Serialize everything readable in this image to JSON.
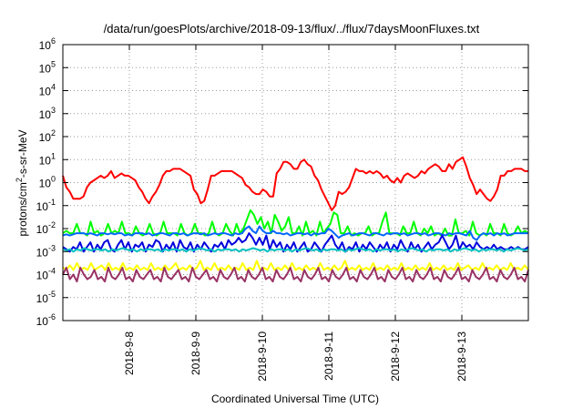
{
  "chart_data": {
    "type": "line",
    "title": "/data/run/goesPlots/archive/2018-09-13/flux/../flux/7daysMoonFluxes.txt",
    "xlabel": "Coordinated Universal Time (UTC)",
    "ylabel_base": "protons/cm",
    "ylabel_sup": "2",
    "ylabel_rest": "-s-sr-MeV",
    "yscale": "log",
    "ylim_exp": [
      -6,
      6
    ],
    "ytick_exps": [
      -6,
      -5,
      -4,
      -3,
      -2,
      -1,
      0,
      1,
      2,
      3,
      4,
      5,
      6
    ],
    "ytick_base": "10",
    "ytick_exp_labels": [
      "-6",
      "-5",
      "-4",
      "-3",
      "-2",
      "-1",
      "0",
      "1",
      "2",
      "3",
      "4",
      "5",
      "6"
    ],
    "xlim_days": [
      0,
      7
    ],
    "xticks": [
      {
        "label": "2018-9-8",
        "day": 1
      },
      {
        "label": "2018-9-9",
        "day": 2
      },
      {
        "label": "2018-9-10",
        "day": 3
      },
      {
        "label": "2018-9-11",
        "day": 4
      },
      {
        "label": "2018-9-12",
        "day": 5
      },
      {
        "label": "2018-9-13",
        "day": 6
      }
    ],
    "grid": "dotted",
    "series": [
      {
        "color": "#ff0000",
        "log10_values": [
          0.3,
          -0.2,
          -0.4,
          -0.7,
          -0.7,
          -0.7,
          -0.6,
          -0.2,
          0.0,
          0.1,
          0.2,
          0.3,
          0.2,
          0.3,
          0.5,
          0.2,
          0.3,
          0.4,
          0.3,
          0.3,
          0.2,
          0.1,
          -0.2,
          -0.4,
          -0.7,
          -0.9,
          -0.6,
          -0.4,
          -0.1,
          0.3,
          0.5,
          0.5,
          0.6,
          0.6,
          0.6,
          0.5,
          0.4,
          0.3,
          -0.3,
          -0.5,
          -0.9,
          -0.8,
          -0.3,
          0.3,
          0.3,
          0.4,
          0.5,
          0.5,
          0.5,
          0.5,
          0.4,
          0.3,
          0.2,
          -0.1,
          -0.2,
          -0.4,
          -0.5,
          -0.5,
          -0.3,
          -0.4,
          -0.6,
          -0.6,
          0.4,
          0.6,
          0.9,
          0.9,
          0.8,
          0.6,
          0.6,
          0.9,
          1.0,
          0.8,
          0.7,
          0.3,
          0.1,
          -0.3,
          -0.6,
          -0.9,
          -1.2,
          -1.0,
          -0.4,
          -0.5,
          -0.4,
          -0.2,
          0.2,
          0.6,
          0.5,
          0.5,
          0.4,
          0.5,
          0.4,
          0.5,
          0.4,
          0.2,
          0.3,
          0.1,
          0.0,
          0.2,
          0.0,
          0.3,
          0.4,
          0.3,
          0.2,
          0.3,
          0.5,
          0.4,
          0.6,
          0.7,
          0.8,
          0.7,
          0.5,
          0.5,
          0.8,
          0.6,
          0.9,
          1.0,
          1.1,
          0.7,
          0.2,
          -0.1,
          -0.5,
          -0.3,
          -0.5,
          -0.7,
          -0.8,
          -0.6,
          -0.3,
          0.3,
          0.3,
          0.5,
          0.5,
          0.6,
          0.6,
          0.6,
          0.5,
          0.5
        ]
      },
      {
        "color": "#00ff00",
        "log10_values": [
          -2.2,
          -2.1,
          -2.2,
          -2.2,
          -1.8,
          -2.2,
          -2.2,
          -2.3,
          -1.7,
          -2.2,
          -2.1,
          -2.3,
          -2.2,
          -1.8,
          -2.2,
          -2.1,
          -2.2,
          -1.7,
          -2.2,
          -2.2,
          -2.3,
          -1.9,
          -2.2,
          -2.3,
          -2.2,
          -1.8,
          -2.2,
          -2.3,
          -2.2,
          -1.7,
          -2.2,
          -2.2,
          -2.2,
          -2.3,
          -1.8,
          -2.2,
          -2.3,
          -2.2,
          -1.8,
          -2.2,
          -2.2,
          -2.3,
          -2.2,
          -1.7,
          -2.2,
          -2.3,
          -2.2,
          -1.8,
          -2.1,
          -2.3,
          -1.8,
          -2.2,
          -2.0,
          -1.6,
          -1.2,
          -1.4,
          -1.8,
          -1.5,
          -2.0,
          -1.7,
          -2.2,
          -1.4,
          -1.7,
          -2.1,
          -1.9,
          -1.5,
          -2.2,
          -2.2,
          -1.9,
          -2.3,
          -1.7,
          -2.2,
          -2.1,
          -2.3,
          -1.7,
          -2.2,
          -2.0,
          -1.8,
          -1.3,
          -1.4,
          -2.2,
          -2.2,
          -1.9,
          -2.3,
          -2.2,
          -2.3,
          -2.2,
          -2.2,
          -1.9,
          -2.3,
          -2.2,
          -2.2,
          -1.7,
          -1.3,
          -2.2,
          -2.2,
          -2.2,
          -2.3,
          -1.9,
          -2.2,
          -2.2,
          -1.7,
          -2.2,
          -2.3,
          -2.0,
          -2.2,
          -1.9,
          -2.3,
          -2.2,
          -2.3,
          -2.0,
          -2.3,
          -2.3,
          -1.6,
          -2.2,
          -2.2,
          -2.1,
          -2.3,
          -1.7,
          -2.2,
          -2.3,
          -2.2,
          -2.3,
          -1.8,
          -2.2,
          -2.2,
          -2.3,
          -1.8,
          -2.2,
          -2.3,
          -2.2,
          -1.9,
          -2.2,
          -2.1,
          -2.2
        ]
      },
      {
        "color": "#0066ff",
        "log10_values": [
          -2.3,
          -2.25,
          -2.3,
          -2.25,
          -2.2,
          -2.2,
          -2.2,
          -2.25,
          -2.2,
          -2.25,
          -2.3,
          -2.2,
          -2.2,
          -2.25,
          -2.2,
          -2.25,
          -2.2,
          -2.2,
          -2.3,
          -2.25,
          -2.3,
          -2.2,
          -2.2,
          -2.2,
          -2.25,
          -2.2,
          -2.3,
          -2.25,
          -2.2,
          -2.2,
          -2.25,
          -2.3,
          -2.2,
          -2.2,
          -2.25,
          -2.2,
          -2.3,
          -2.25,
          -2.2,
          -2.2,
          -2.25,
          -2.2,
          -2.3,
          -2.25,
          -2.2,
          -2.25,
          -2.2,
          -2.2,
          -2.25,
          -2.3,
          -2.2,
          -2.25,
          -2.2,
          -2.0,
          -1.9,
          -2.1,
          -2.2,
          -1.9,
          -2.1,
          -2.2,
          -2.2,
          -2.1,
          -2.2,
          -2.2,
          -2.25,
          -2.2,
          -2.3,
          -2.25,
          -2.2,
          -2.2,
          -2.25,
          -2.2,
          -2.3,
          -2.2,
          -2.25,
          -2.2,
          -2.2,
          -2.0,
          -2.1,
          -2.25,
          -2.4,
          -2.3,
          -2.25,
          -2.2,
          -2.3,
          -2.25,
          -2.2,
          -2.2,
          -2.25,
          -2.3,
          -2.2,
          -2.2,
          -2.25,
          -2.3,
          -2.2,
          -2.25,
          -2.2,
          -2.2,
          -2.25,
          -2.2,
          -2.3,
          -2.25,
          -2.2,
          -2.2,
          -2.25,
          -2.2,
          -2.3,
          -2.25,
          -2.2,
          -2.2,
          -2.25,
          -2.3,
          -2.2,
          -2.25,
          -2.2,
          -2.2,
          -2.25,
          -2.3,
          -2.1,
          -2.4,
          -2.5,
          -2.3,
          -2.2,
          -2.25,
          -2.2,
          -2.3,
          -2.2,
          -2.25,
          -2.2,
          -2.3,
          -2.25,
          -2.2,
          -2.2,
          -2.2,
          -2.2,
          -2.2
        ]
      },
      {
        "color": "#0000dd",
        "log10_values": [
          -2.8,
          -2.9,
          -3.0,
          -2.8,
          -2.9,
          -2.6,
          -3.0,
          -2.8,
          -2.6,
          -3.0,
          -2.7,
          -2.9,
          -2.6,
          -2.5,
          -2.9,
          -3.0,
          -2.7,
          -2.5,
          -2.9,
          -2.6,
          -3.0,
          -2.7,
          -2.8,
          -2.6,
          -3.0,
          -2.7,
          -2.8,
          -2.5,
          -2.6,
          -3.0,
          -2.7,
          -2.9,
          -2.6,
          -3.0,
          -2.5,
          -2.8,
          -2.9,
          -2.6,
          -3.0,
          -2.7,
          -2.9,
          -2.6,
          -2.8,
          -3.0,
          -2.7,
          -2.8,
          -2.6,
          -2.9,
          -2.5,
          -2.7,
          -2.6,
          -2.4,
          -2.6,
          -2.5,
          -2.2,
          -2.4,
          -2.7,
          -2.4,
          -2.7,
          -2.3,
          -2.9,
          -2.5,
          -2.8,
          -2.6,
          -3.0,
          -2.7,
          -2.9,
          -2.6,
          -3.0,
          -2.8,
          -2.6,
          -3.0,
          -2.9,
          -2.6,
          -2.8,
          -3.0,
          -2.7,
          -2.5,
          -2.3,
          -2.7,
          -2.9,
          -2.6,
          -3.0,
          -2.8,
          -2.9,
          -2.6,
          -3.0,
          -2.7,
          -2.9,
          -2.6,
          -2.8,
          -3.0,
          -2.7,
          -2.9,
          -2.6,
          -3.0,
          -2.7,
          -2.9,
          -2.5,
          -2.8,
          -3.0,
          -2.6,
          -2.9,
          -2.7,
          -3.0,
          -2.8,
          -2.6,
          -2.9,
          -2.7,
          -2.6,
          -2.3,
          -2.6,
          -2.9,
          -2.7,
          -2.3,
          -2.9,
          -2.6,
          -2.8,
          -2.7,
          -2.9,
          -2.6,
          -2.8,
          -2.9,
          -2.8,
          -2.9,
          -2.7,
          -2.9,
          -2.8,
          -2.9,
          -2.9,
          -2.8,
          -2.9,
          -2.8,
          -2.9,
          -2.9,
          -2.8
        ]
      },
      {
        "color": "#00c0c0",
        "log10_values": [
          -2.9,
          -2.95,
          -2.9,
          -3.0,
          -2.9,
          -2.95,
          -2.85,
          -2.9,
          -2.95,
          -2.9,
          -2.9,
          -2.95,
          -2.9,
          -3.0,
          -2.9,
          -2.95,
          -2.9,
          -2.85,
          -2.9,
          -2.95,
          -2.9,
          -3.0,
          -2.9,
          -2.95,
          -2.9,
          -2.9,
          -2.95,
          -2.9,
          -3.0,
          -2.9,
          -2.95,
          -2.9,
          -2.9,
          -2.95,
          -2.9,
          -3.0,
          -2.9,
          -2.95,
          -2.9,
          -2.85,
          -2.9,
          -2.95,
          -2.9,
          -3.0,
          -2.9,
          -2.95,
          -2.9,
          -2.9,
          -2.95,
          -2.9,
          -3.0,
          -2.9,
          -2.95,
          -2.9,
          -2.85,
          -2.9,
          -2.95,
          -2.9,
          -3.0,
          -2.9,
          -2.95,
          -2.9,
          -2.9,
          -2.95,
          -2.9,
          -3.0,
          -2.9,
          -2.95,
          -2.9,
          -2.85,
          -2.9,
          -2.95,
          -2.9,
          -3.0,
          -2.9,
          -2.95,
          -2.9,
          -2.9,
          -2.95,
          -2.9,
          -3.0,
          -2.9,
          -2.95,
          -2.9,
          -2.85,
          -2.9,
          -2.95,
          -2.9,
          -3.0,
          -2.9,
          -2.95,
          -2.9,
          -2.9,
          -2.95,
          -2.9,
          -3.0,
          -2.9,
          -2.95,
          -2.9,
          -2.85,
          -2.9,
          -2.95,
          -2.9,
          -3.0,
          -2.9,
          -2.95,
          -2.9,
          -2.9,
          -2.95,
          -2.9,
          -3.0,
          -2.9,
          -2.95,
          -2.9,
          -2.85,
          -2.9,
          -2.95,
          -2.9,
          -3.0,
          -2.9,
          -2.95,
          -2.9,
          -2.9,
          -2.95,
          -2.9,
          -3.0,
          -2.9,
          -2.95,
          -2.9,
          -2.85,
          -2.9,
          -2.95,
          -2.9
        ]
      },
      {
        "color": "#ffff00",
        "log10_values": [
          -3.7,
          -3.8,
          -3.6,
          -3.8,
          -3.5,
          -3.8,
          -3.7,
          -3.8,
          -3.5,
          -3.8,
          -3.7,
          -3.6,
          -3.8,
          -3.5,
          -3.8,
          -3.7,
          -3.8,
          -3.5,
          -3.8,
          -3.7,
          -3.8,
          -3.6,
          -3.8,
          -3.7,
          -3.8,
          -3.5,
          -3.8,
          -3.7,
          -3.8,
          -3.6,
          -3.8,
          -3.7,
          -3.5,
          -3.8,
          -3.7,
          -3.8,
          -3.6,
          -3.8,
          -3.7,
          -3.4,
          -3.8,
          -3.7,
          -3.8,
          -3.5,
          -3.8,
          -3.7,
          -3.8,
          -3.6,
          -3.8,
          -3.7,
          -3.8,
          -3.5,
          -3.8,
          -3.7,
          -3.8,
          -3.4,
          -3.8,
          -3.7,
          -3.8,
          -3.5,
          -3.8,
          -3.7,
          -3.8,
          -3.6,
          -3.8,
          -3.5,
          -3.8,
          -3.7,
          -3.8,
          -3.6,
          -3.8,
          -3.7,
          -3.8,
          -3.5,
          -3.8,
          -3.7,
          -3.8,
          -3.6,
          -3.8,
          -3.7,
          -3.4,
          -3.8,
          -3.7,
          -3.8,
          -3.6,
          -3.8,
          -3.7,
          -3.8,
          -3.5,
          -3.8,
          -3.7,
          -3.8,
          -3.6,
          -3.8,
          -3.7,
          -3.8,
          -3.5,
          -3.8,
          -3.7,
          -3.8,
          -3.6,
          -3.8,
          -3.7,
          -3.8,
          -3.5,
          -3.8,
          -3.7,
          -3.8,
          -3.6,
          -3.8,
          -3.7,
          -3.8,
          -3.5,
          -3.8,
          -3.7,
          -3.6,
          -3.8,
          -3.7,
          -3.8,
          -3.5,
          -3.8,
          -3.7,
          -3.8,
          -3.6,
          -3.8,
          -3.7,
          -3.8,
          -3.5,
          -3.8,
          -3.7,
          -3.8,
          -3.6,
          -3.8
        ]
      },
      {
        "color": "#993366",
        "log10_values": [
          -4.0,
          -3.7,
          -4.2,
          -4.0,
          -4.3,
          -3.7,
          -4.0,
          -4.2,
          -4.1,
          -3.8,
          -4.2,
          -4.1,
          -4.3,
          -3.7,
          -4.1,
          -4.2,
          -4.0,
          -3.7,
          -4.2,
          -4.1,
          -4.3,
          -3.8,
          -4.1,
          -4.2,
          -4.0,
          -3.8,
          -4.2,
          -4.1,
          -4.3,
          -3.7,
          -4.1,
          -4.2,
          -4.0,
          -3.8,
          -4.2,
          -4.1,
          -4.3,
          -3.7,
          -4.1,
          -4.2,
          -4.0,
          -3.8,
          -4.2,
          -4.1,
          -4.3,
          -3.8,
          -4.1,
          -4.2,
          -4.0,
          -3.7,
          -4.2,
          -4.1,
          -4.3,
          -3.8,
          -4.1,
          -4.2,
          -4.0,
          -3.7,
          -4.2,
          -4.1,
          -4.3,
          -3.8,
          -4.1,
          -4.2,
          -4.0,
          -3.7,
          -4.2,
          -4.1,
          -4.3,
          -3.8,
          -4.1,
          -4.2,
          -4.0,
          -3.7,
          -4.2,
          -4.1,
          -4.3,
          -3.8,
          -4.1,
          -4.2,
          -4.0,
          -3.7,
          -4.2,
          -4.1,
          -4.3,
          -3.8,
          -4.1,
          -4.2,
          -4.0,
          -3.7,
          -4.2,
          -4.1,
          -4.3,
          -3.8,
          -4.1,
          -4.2,
          -4.0,
          -3.7,
          -4.2,
          -4.1,
          -4.3,
          -3.8,
          -4.1,
          -4.2,
          -4.0,
          -3.7,
          -4.2,
          -4.1,
          -4.3,
          -3.8,
          -4.1,
          -4.2,
          -4.0,
          -3.7,
          -4.2,
          -4.1,
          -4.3,
          -3.8,
          -4.1,
          -4.2,
          -4.0,
          -3.7,
          -4.2,
          -4.1,
          -4.3,
          -3.8,
          -4.1,
          -4.2,
          -4.0,
          -3.7,
          -4.2,
          -4.1,
          -4.3,
          -3.8
        ]
      }
    ]
  }
}
